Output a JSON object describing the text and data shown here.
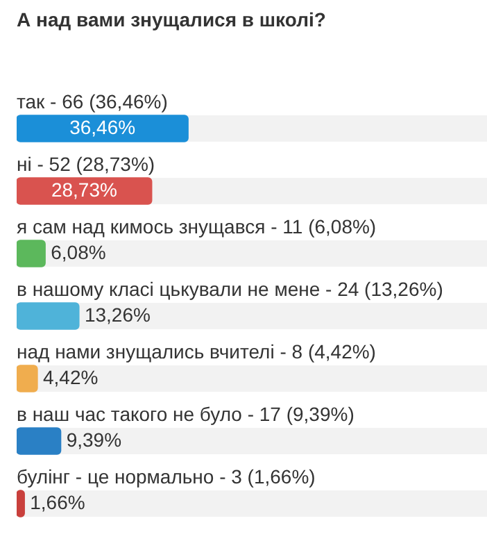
{
  "chart_data": {
    "type": "bar",
    "orientation": "horizontal",
    "title": "А над вами знущалися в школі?",
    "categories": [
      "так - 66 (36,46%)",
      "ні - 52 (28,73%)",
      "я сам над кимось знущався - 11 (6,08%)",
      "в нашому класі цькували не мене - 24 (13,26%)",
      "над нами знущались вчителі - 8 (4,42%)",
      "в наш час такого не було - 17 (9,39%)",
      "булінг - це нормально - 3 (1,66%)"
    ],
    "values": [
      36.46,
      28.73,
      6.08,
      13.26,
      4.42,
      9.39,
      1.66
    ],
    "value_labels": [
      "36,46%",
      "28,73%",
      "6,08%",
      "13,26%",
      "4,42%",
      "9,39%",
      "1,66%"
    ],
    "colors": [
      "#1b8fd8",
      "#d9534f",
      "#5cb85c",
      "#4fb3d9",
      "#f0ad4e",
      "#2a80c5",
      "#c9403c"
    ],
    "xlim": [
      0,
      100
    ],
    "tick_labels": false
  }
}
